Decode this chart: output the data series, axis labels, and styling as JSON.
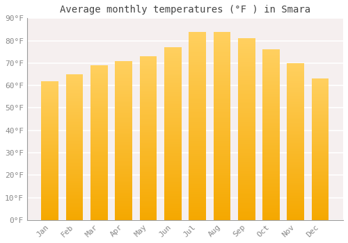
{
  "title": "Average monthly temperatures (°F ) in Smara",
  "months": [
    "Jan",
    "Feb",
    "Mar",
    "Apr",
    "May",
    "Jun",
    "Jul",
    "Aug",
    "Sep",
    "Oct",
    "Nov",
    "Dec"
  ],
  "values": [
    62,
    65,
    69,
    71,
    73,
    77,
    84,
    84,
    81,
    76,
    70,
    63
  ],
  "bar_color_bottom": "#F5A800",
  "bar_color_top": "#FFD060",
  "ylim": [
    0,
    90
  ],
  "yticks": [
    0,
    10,
    20,
    30,
    40,
    50,
    60,
    70,
    80,
    90
  ],
  "ytick_labels": [
    "0°F",
    "10°F",
    "20°F",
    "30°F",
    "40°F",
    "50°F",
    "60°F",
    "70°F",
    "80°F",
    "90°F"
  ],
  "bg_color": "#FFFFFF",
  "plot_bg_color": "#F5EFEF",
  "grid_color": "#FFFFFF",
  "title_fontsize": 10,
  "tick_fontsize": 8,
  "font_family": "monospace",
  "bar_width": 0.7
}
